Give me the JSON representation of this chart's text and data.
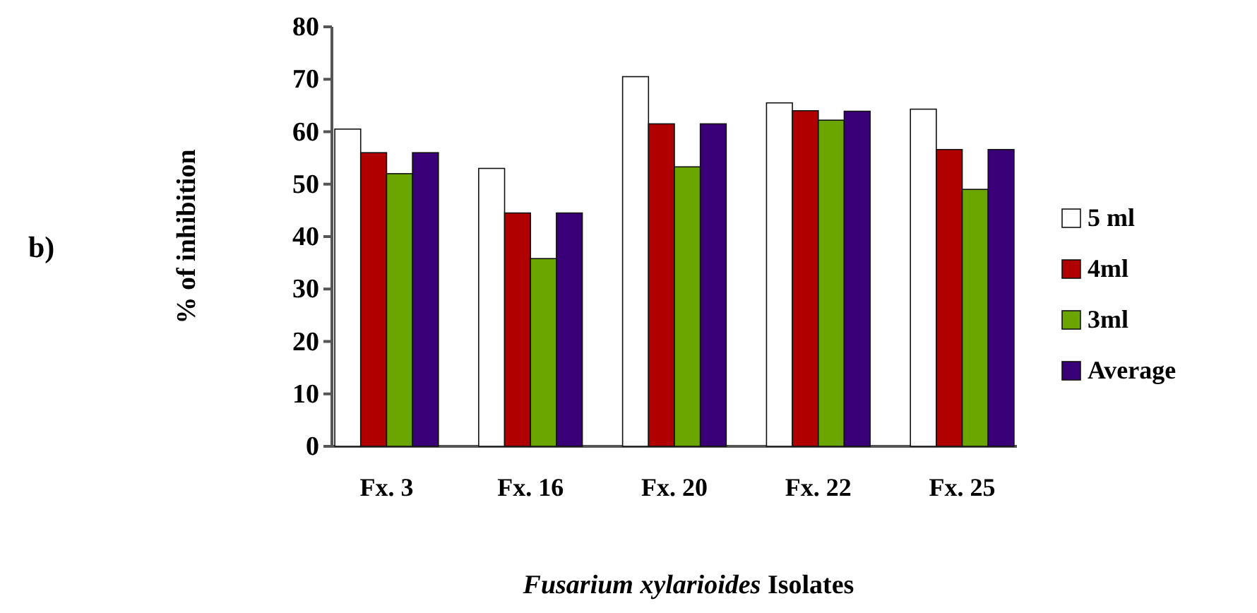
{
  "chart_data": {
    "type": "bar",
    "xlabel": "Fusarium xylarioides Isolates",
    "ylabel": "% of inhibition",
    "annotations": [
      "b)"
    ],
    "categories": [
      "Fx. 3",
      "Fx. 16",
      "Fx. 20",
      "Fx. 22",
      "Fx. 25"
    ],
    "series": [
      {
        "name": "5 ml",
        "color": "#ffffff",
        "values": [
          60.5,
          53,
          70.5,
          65.5,
          64.3
        ]
      },
      {
        "name": "4ml",
        "color": "#b00000",
        "values": [
          56,
          44.5,
          61.5,
          64,
          56.6
        ]
      },
      {
        "name": "3ml",
        "color": "#6aa500",
        "values": [
          52,
          35.8,
          53.3,
          62.2,
          49
        ]
      },
      {
        "name": "Average",
        "color": "#3a0078",
        "values": [
          56,
          44.5,
          61.5,
          63.9,
          56.6
        ]
      }
    ],
    "ylim": [
      0,
      80
    ],
    "yticks": [
      0,
      10,
      20,
      30,
      40,
      50,
      60,
      70,
      80
    ],
    "grid": false,
    "legend": "right"
  }
}
